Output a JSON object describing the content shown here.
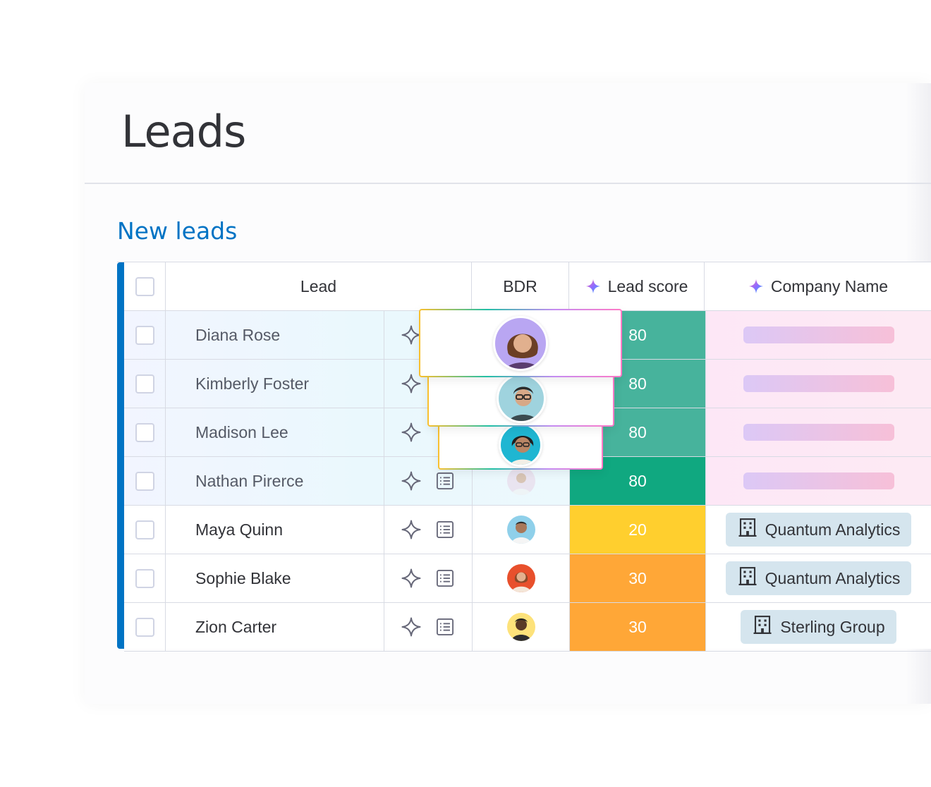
{
  "page": {
    "title": "Leads"
  },
  "group": {
    "title": "New leads",
    "color": "#0073c4"
  },
  "columns": {
    "lead": "Lead",
    "bdr": "BDR",
    "lead_score": "Lead score",
    "company_name": "Company Name"
  },
  "rows": [
    {
      "name": "Diana Rose",
      "score": "80",
      "score_color": "#47b39c",
      "company": "",
      "loading": true
    },
    {
      "name": "Kimberly Foster",
      "score": "80",
      "score_color": "#47b39c",
      "company": "",
      "loading": true
    },
    {
      "name": "Madison Lee",
      "score": "80",
      "score_color": "#47b39c",
      "company": "",
      "loading": true
    },
    {
      "name": "Nathan Pirerce",
      "score": "80",
      "score_color": "#10a880",
      "company": "",
      "loading": true
    },
    {
      "name": "Maya Quinn",
      "score": "20",
      "score_color": "#ffcf2e",
      "company": "Quantum Analytics",
      "loading": false
    },
    {
      "name": "Sophie Blake",
      "score": "30",
      "score_color": "#ffa737",
      "company": "Quantum Analytics",
      "loading": false
    },
    {
      "name": "Zion Carter",
      "score": "30",
      "score_color": "#ffa737",
      "company": "Sterling Group",
      "loading": false
    }
  ],
  "icons": {
    "row_spark": "sparkle-outline-icon",
    "row_doc": "list-doc-icon",
    "company": "building-icon",
    "ai_column": "ai-sparkle-icon"
  }
}
